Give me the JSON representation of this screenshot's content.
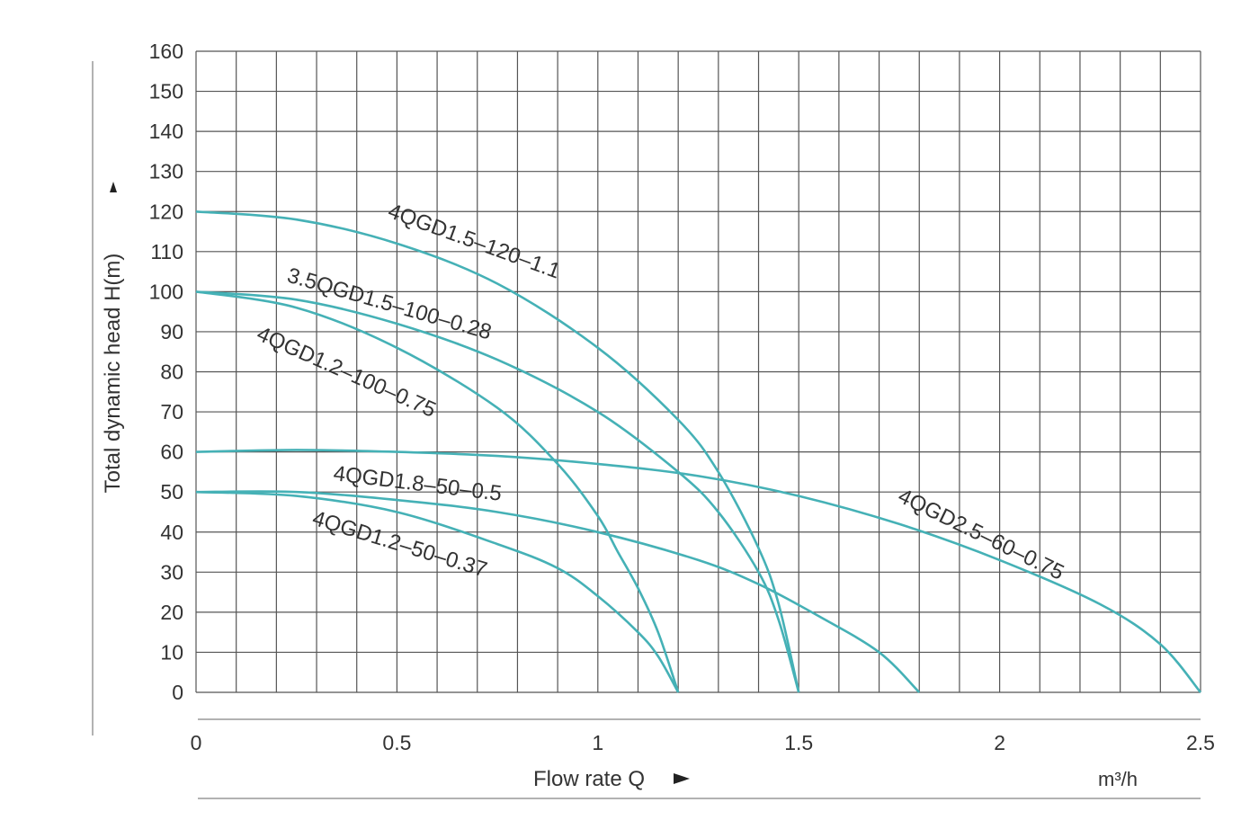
{
  "chart_data": {
    "type": "line",
    "xlabel": "Flow rate Q",
    "ylabel": "Total dynamic head H(m)",
    "x_unit": "m³/h",
    "xlim": [
      0,
      2.5
    ],
    "ylim": [
      0,
      160
    ],
    "x_ticks": [
      "0",
      "0.5",
      "1",
      "1.5",
      "2",
      "2.5"
    ],
    "y_ticks": [
      "0",
      "10",
      "20",
      "30",
      "40",
      "50",
      "60",
      "70",
      "80",
      "90",
      "100",
      "110",
      "120",
      "130",
      "140",
      "150",
      "160"
    ],
    "grid": true,
    "curve_color": "#45b1b6",
    "series": [
      {
        "name": "4QGD1.5–120–1.1",
        "x": [
          0,
          0.25,
          0.5,
          0.75,
          1.0,
          1.2,
          1.3,
          1.4,
          1.45,
          1.5
        ],
        "y": [
          120,
          118,
          112,
          102,
          86,
          68,
          55,
          36,
          22,
          0
        ]
      },
      {
        "name": "3.5QGD1.5–100–0.28",
        "x": [
          0,
          0.25,
          0.5,
          0.75,
          1.0,
          1.2,
          1.3,
          1.4,
          1.45,
          1.5
        ],
        "y": [
          100,
          98,
          92,
          83,
          70,
          55,
          45,
          30,
          18,
          0
        ]
      },
      {
        "name": "4QGD1.2–100–0.75",
        "x": [
          0,
          0.25,
          0.5,
          0.75,
          0.9,
          1.0,
          1.05,
          1.1,
          1.15,
          1.2
        ],
        "y": [
          100,
          96,
          86,
          71,
          57,
          44,
          35,
          26,
          15,
          0
        ]
      },
      {
        "name": "4QGD1.8–50–0.5",
        "x": [
          0,
          0.25,
          0.5,
          0.75,
          1.0,
          1.25,
          1.4,
          1.55,
          1.7,
          1.8
        ],
        "y": [
          50,
          50,
          48,
          45,
          40,
          33,
          27,
          19,
          10,
          0
        ]
      },
      {
        "name": "4QGD1.2–50–0.37",
        "x": [
          0,
          0.25,
          0.5,
          0.75,
          0.9,
          1.0,
          1.1,
          1.15,
          1.2
        ],
        "y": [
          50,
          49,
          45,
          37,
          31,
          24,
          15,
          9,
          0
        ]
      },
      {
        "name": "4QGD2.5–60–0.75",
        "x": [
          0,
          0.25,
          0.5,
          0.75,
          1.0,
          1.25,
          1.5,
          1.75,
          2.0,
          2.25,
          2.4,
          2.5
        ],
        "y": [
          60,
          60.5,
          60,
          59,
          57,
          54,
          49,
          42,
          33,
          22,
          12,
          0
        ]
      }
    ]
  }
}
